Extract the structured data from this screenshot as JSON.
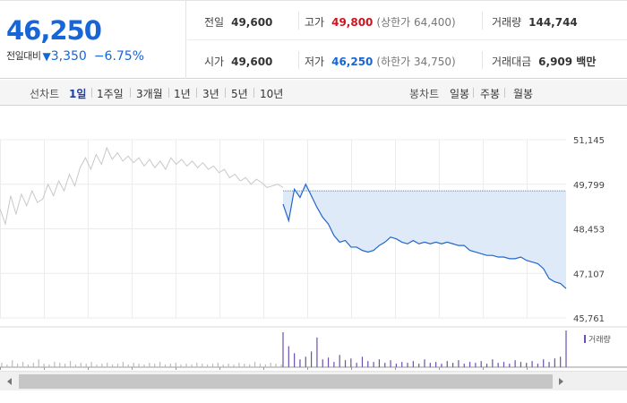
{
  "quote": {
    "price": "46,250",
    "change_label": "전일대비",
    "change_arrow": "▼",
    "change_value": "3,350",
    "change_pct": "−6.75%"
  },
  "stats": {
    "prev_close": {
      "label": "전일",
      "value": "49,600"
    },
    "high": {
      "label": "고가",
      "value": "49,800",
      "sub": "(상한가 64,400)"
    },
    "volume": {
      "label": "거래량",
      "value": "144,744"
    },
    "open": {
      "label": "시가",
      "value": "49,600"
    },
    "low": {
      "label": "저가",
      "value": "46,250",
      "sub": "(하한가 34,750)"
    },
    "amount": {
      "label": "거래대금",
      "value": "6,909 백만"
    }
  },
  "toolbar": {
    "line_chart_label": "선차트",
    "periods": [
      "1일",
      "1주일",
      "3개월",
      "1년",
      "3년",
      "5년",
      "10년"
    ],
    "active_period": "1일",
    "candle_chart_label": "봉차트",
    "candle_periods": [
      "일봉",
      "주봉",
      "월봉"
    ]
  },
  "colors": {
    "accent_blue": "#1766d8",
    "up_red": "#d0131c",
    "active_tab": "#1f3fa6",
    "today_line": "#2266cc",
    "prev_line": "#c8c8c8",
    "fill": "#dfeaf9",
    "volume_today": "#6a4fb0",
    "volume_prev": "#bbbbbb"
  },
  "chart_data": {
    "type": "line",
    "y_ticks": [
      "51,145",
      "49,799",
      "48,453",
      "47,107",
      "45,761"
    ],
    "ylim": [
      45761,
      51145
    ],
    "reference_price": 49600,
    "prev_day": [
      49050,
      48600,
      49450,
      48900,
      49500,
      49150,
      49600,
      49250,
      49350,
      49800,
      49450,
      49900,
      49600,
      50100,
      49750,
      50300,
      50600,
      50250,
      50700,
      50400,
      50900,
      50550,
      50750,
      50500,
      50650,
      50450,
      50600,
      50350,
      50550,
      50300,
      50500,
      50250,
      50600,
      50400,
      50550,
      50350,
      50500,
      50300,
      50450,
      50250,
      50350,
      50150,
      50250,
      50000,
      50100,
      49900,
      50000,
      49800,
      49950,
      49850,
      49700,
      49750,
      49800,
      49700
    ],
    "today": [
      49200,
      48700,
      49650,
      49400,
      49800,
      49450,
      49100,
      48800,
      48600,
      48250,
      48050,
      48100,
      47900,
      47900,
      47800,
      47750,
      47800,
      47950,
      48050,
      48200,
      48150,
      48050,
      48000,
      48100,
      48000,
      48050,
      48000,
      48050,
      48000,
      48050,
      48000,
      47950,
      47950,
      47800,
      47750,
      47700,
      47650,
      47650,
      47600,
      47600,
      47550,
      47550,
      47600,
      47500,
      47450,
      47400,
      47250,
      46950,
      46850,
      46800,
      46650
    ],
    "volume_legend": "거래량",
    "volume_prev": [
      5,
      3,
      8,
      4,
      6,
      3,
      5,
      9,
      4,
      3,
      6,
      5,
      4,
      7,
      3,
      5,
      4,
      6,
      3,
      4,
      5,
      3,
      4,
      6,
      3,
      5,
      4,
      3,
      5,
      4,
      6,
      3,
      4,
      5,
      3,
      4,
      3,
      5,
      4,
      3,
      4,
      5,
      3,
      4,
      3,
      5,
      4,
      3,
      6,
      4,
      3,
      5,
      4,
      3
    ],
    "volume_today": [
      40,
      24,
      16,
      9,
      12,
      18,
      34,
      9,
      11,
      6,
      14,
      8,
      10,
      5,
      12,
      7,
      6,
      9,
      5,
      8,
      4,
      6,
      5,
      7,
      4,
      9,
      5,
      6,
      4,
      7,
      5,
      8,
      4,
      6,
      5,
      7,
      4,
      9,
      5,
      6,
      4,
      8,
      6,
      5,
      7,
      4,
      9,
      6,
      10,
      12,
      42
    ]
  }
}
